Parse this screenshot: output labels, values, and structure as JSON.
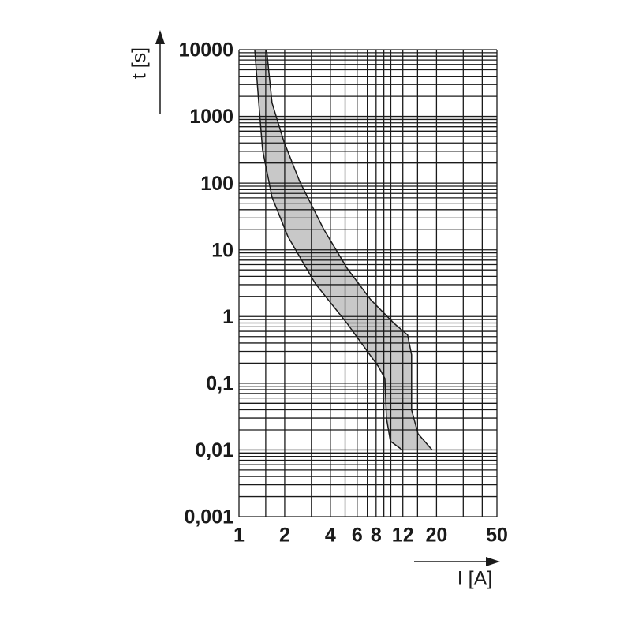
{
  "chart_data": {
    "type": "band",
    "x_label": "I [A]",
    "y_label": "t [s]",
    "xscale": "log",
    "yscale": "log",
    "xlim": [
      1,
      50
    ],
    "ylim": [
      0.001,
      10000
    ],
    "xticks": [
      1,
      2,
      4,
      6,
      8,
      12,
      20,
      50
    ],
    "yticks": [
      {
        "value": 0.001,
        "label": "0,001"
      },
      {
        "value": 0.01,
        "label": "0,01"
      },
      {
        "value": 0.1,
        "label": "0,1"
      },
      1,
      10,
      100,
      1000,
      10000
    ],
    "xgrid": [
      1,
      1.5,
      2,
      3,
      4,
      5,
      6,
      7,
      8,
      9,
      10,
      12,
      15,
      20,
      30,
      40,
      50
    ],
    "ygrid": [
      0.001,
      0.002,
      0.003,
      0.004,
      0.005,
      0.006,
      0.007,
      0.008,
      0.009,
      0.01,
      0.02,
      0.03,
      0.04,
      0.05,
      0.06,
      0.07,
      0.08,
      0.09,
      0.1,
      0.2,
      0.3,
      0.4,
      0.5,
      0.6,
      0.7,
      0.8,
      0.9,
      1,
      2,
      3,
      4,
      5,
      6,
      7,
      8,
      9,
      10,
      20,
      30,
      40,
      50,
      60,
      70,
      80,
      90,
      100,
      200,
      300,
      400,
      500,
      600,
      700,
      800,
      900,
      1000,
      2000,
      3000,
      4000,
      5000,
      6000,
      7000,
      8000,
      9000,
      10000
    ],
    "fill": "#c8c8c8",
    "line_color": "#1a1a1a",
    "series": [
      {
        "x": [
          1.27,
          1.35,
          1.43,
          1.65,
          2.1,
          3.19,
          5.15,
          8.3,
          9.14,
          9.36,
          9.94,
          11.9
        ],
        "values": [
          10000,
          1600,
          316,
          61.6,
          15.8,
          3.09,
          0.79,
          0.177,
          0.118,
          0.03,
          0.0135,
          0.01
        ]
      },
      {
        "x": [
          1.52,
          1.65,
          1.98,
          2.51,
          3.6,
          5.15,
          7.37,
          10.5,
          12.9,
          13.7,
          13.7,
          15.1,
          18.7
        ],
        "values": [
          10000,
          1600,
          414,
          106,
          20.7,
          5.3,
          1.79,
          0.79,
          0.53,
          0.267,
          0.04,
          0.0175,
          0.01
        ]
      }
    ]
  }
}
